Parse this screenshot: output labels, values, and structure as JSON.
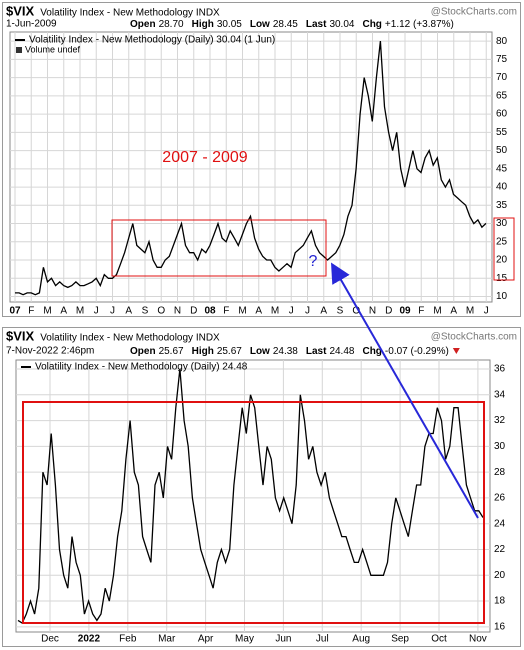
{
  "chart_data": [
    {
      "type": "line",
      "title": "$VIX",
      "subtitle": "Volatility Index - New Methodology INDX",
      "watermark": "@StockCharts.com",
      "date": "1-Jun-2009",
      "quote": [
        [
          "Open",
          "28.70"
        ],
        [
          "High",
          "30.05"
        ],
        [
          "Low",
          "28.45"
        ],
        [
          "Last",
          "30.04"
        ],
        [
          "Chg",
          "+1.12 (+3.87%)"
        ]
      ],
      "volume_label": "Volume undef",
      "annotations": [
        {
          "text": "2007 - 2009",
          "color": "#e01010"
        },
        {
          "text": "?",
          "color": "#2020d0"
        }
      ],
      "xticks": [
        "07",
        "F",
        "M",
        "A",
        "M",
        "J",
        "J",
        "A",
        "S",
        "O",
        "N",
        "D",
        "08",
        "F",
        "M",
        "A",
        "M",
        "J",
        "J",
        "A",
        "S",
        "O",
        "N",
        "D",
        "09",
        "F",
        "M",
        "A",
        "M",
        "J"
      ],
      "ylim": [
        8.5,
        82.5
      ],
      "yticks": [
        10,
        15,
        20,
        25,
        30,
        35,
        40,
        45,
        50,
        55,
        60,
        65,
        70,
        75,
        80
      ],
      "grid": true,
      "series": [
        {
          "name": "Volatility Index - New Methodology (Daily) 30.04 (1 Jun)",
          "color": "#000000",
          "values": [
            11,
            11,
            10.5,
            11,
            11,
            10.5,
            11,
            18,
            14,
            15,
            13,
            14,
            13,
            12.5,
            13,
            14,
            13,
            13,
            13.5,
            14,
            15,
            13,
            16,
            15,
            15,
            16,
            19,
            22,
            26,
            30,
            24,
            23,
            22,
            25,
            20,
            18,
            18,
            20,
            21,
            24,
            27,
            30,
            24,
            22,
            22,
            20,
            23,
            22,
            24,
            27,
            30,
            26,
            25,
            28,
            26,
            24,
            27,
            30,
            32,
            26,
            23,
            21,
            20,
            20,
            18,
            17,
            18,
            19,
            18,
            22,
            23,
            24,
            26,
            28,
            24,
            22,
            21,
            20,
            21,
            22,
            24,
            27,
            32,
            35,
            45,
            60,
            70,
            65,
            58,
            70,
            80,
            62,
            55,
            50,
            55,
            45,
            40,
            45,
            50,
            45,
            44,
            48,
            50,
            46,
            48,
            42,
            40,
            42,
            38,
            37,
            36,
            35,
            32,
            30,
            31,
            29,
            30.04
          ]
        }
      ]
    },
    {
      "type": "line",
      "title": "$VIX",
      "subtitle": "Volatility Index - New Methodology INDX",
      "watermark": "@StockCharts.com",
      "date": "7-Nov-2022 2:46pm",
      "quote": [
        [
          "Open",
          "25.67"
        ],
        [
          "High",
          "25.67"
        ],
        [
          "Low",
          "24.38"
        ],
        [
          "Last",
          "24.48"
        ],
        [
          "Chg",
          "-0.07 (-0.29%)"
        ]
      ],
      "xticks": [
        "Dec",
        "2022",
        "Feb",
        "Mar",
        "Apr",
        "May",
        "Jun",
        "Jul",
        "Aug",
        "Sep",
        "Oct",
        "Nov"
      ],
      "ylim": [
        15.6,
        36.7
      ],
      "yticks": [
        16,
        18,
        20,
        22,
        24,
        26,
        28,
        30,
        32,
        34,
        36
      ],
      "grid": true,
      "series": [
        {
          "name": "Volatility Index - New Methodology (Daily) 24.48",
          "color": "#000000",
          "values": [
            16.5,
            16.3,
            17,
            18,
            17,
            19,
            28,
            27,
            31,
            27,
            22,
            20,
            19,
            23,
            21,
            20,
            17,
            18,
            17,
            16.5,
            17,
            19,
            18,
            20,
            23,
            25,
            29,
            32,
            28,
            27,
            23,
            22,
            21,
            27,
            28,
            26,
            30,
            29,
            33,
            36,
            32,
            30,
            26,
            24,
            22,
            21,
            20,
            19,
            21,
            22,
            21,
            22,
            27,
            30,
            33,
            31,
            34,
            33,
            30,
            27,
            30,
            29,
            26,
            25,
            26,
            25,
            24,
            27,
            34,
            32,
            29,
            30,
            28,
            27,
            28,
            26,
            25,
            24,
            23,
            23,
            22,
            21,
            21,
            22,
            21,
            20,
            20,
            20,
            20,
            21,
            24,
            26,
            25,
            24,
            23,
            25,
            27,
            27,
            30,
            31,
            31,
            33,
            32,
            29,
            30,
            33,
            33,
            30,
            27,
            26,
            25,
            25,
            24.48
          ]
        }
      ]
    }
  ]
}
